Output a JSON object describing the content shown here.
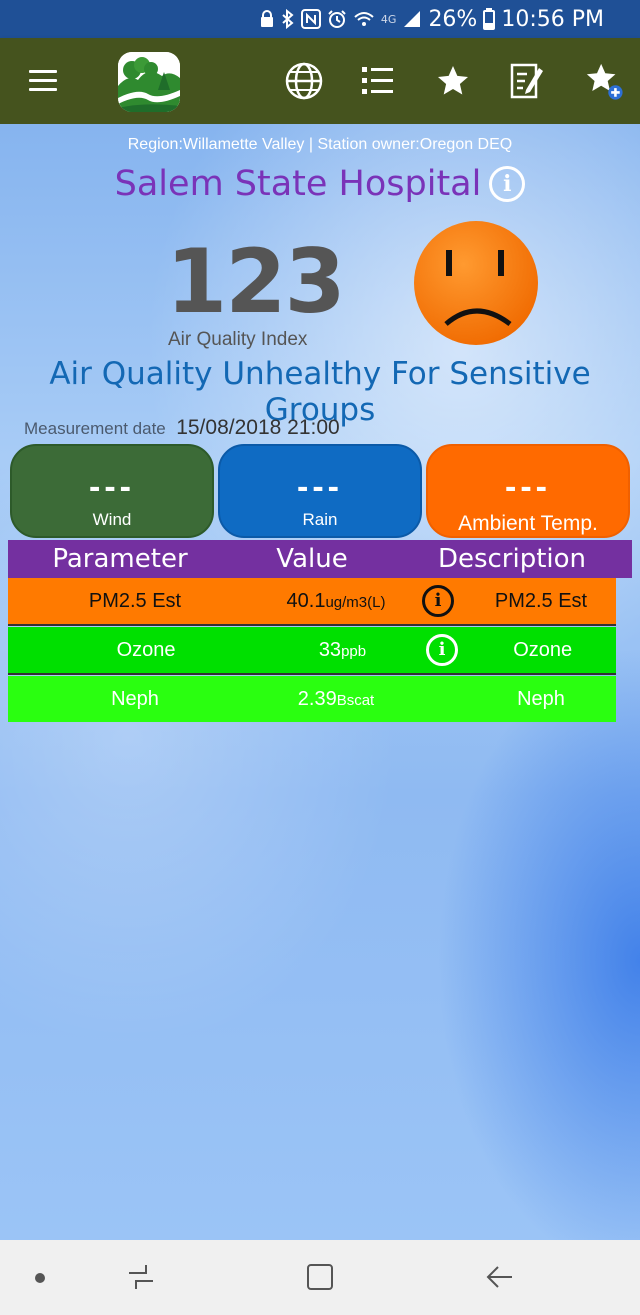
{
  "statusbar": {
    "icons": [
      "lock-icon",
      "bluetooth-icon",
      "nfc-icon",
      "alarm-icon",
      "wifi-icon",
      "4g-icon",
      "signal-icon"
    ],
    "battery": "26%",
    "time": "10:56 PM"
  },
  "appbar": {
    "icons": [
      "menu-icon",
      "app-logo",
      "globe-icon",
      "list-icon",
      "star-icon",
      "notes-icon",
      "star-plus-icon"
    ],
    "accent": "#45531e"
  },
  "station": {
    "region_line": "Region:Willamette Valley | Station owner:Oregon DEQ",
    "name": "Salem State Hospital",
    "info_glyph": "i"
  },
  "aqi": {
    "value": "123",
    "label": "Air Quality Index",
    "status": "Air Quality Unhealthy For Sensitive Groups",
    "status_color": "#ff7a00"
  },
  "measurement": {
    "label": "Measurement date",
    "value": "15/08/2018 21:00"
  },
  "weather": {
    "wind": {
      "value": "---",
      "label": "Wind"
    },
    "rain": {
      "value": "---",
      "label": "Rain"
    },
    "temp": {
      "value": "---",
      "label": "Ambient Temp."
    }
  },
  "table": {
    "headers": [
      "Parameter",
      "Value",
      "Description"
    ],
    "rows": [
      {
        "parameter": "PM2.5 Est",
        "value": "40.1",
        "unit": "ug/m3(L)",
        "info": "i",
        "description": "PM2.5 Est"
      },
      {
        "parameter": "Ozone",
        "value": "33",
        "unit": "ppb",
        "info": "i",
        "description": "Ozone"
      },
      {
        "parameter": "Neph",
        "value": "2.39",
        "unit": "Bscat",
        "description": "Neph"
      }
    ]
  },
  "navbar": {
    "icons": [
      "dot-icon",
      "recent-apps-icon",
      "home-icon",
      "back-icon"
    ]
  }
}
